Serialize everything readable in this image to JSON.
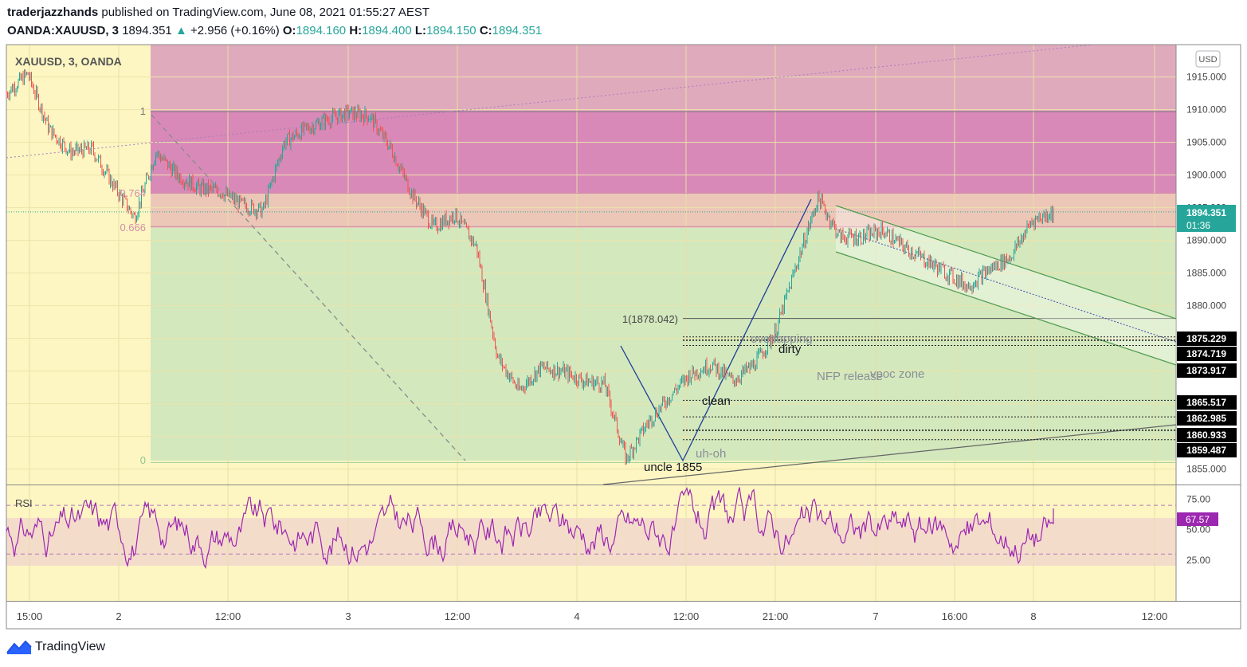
{
  "header": {
    "author": "traderjazzhands",
    "published": "published on TradingView.com, June 08, 2021 01:55:27 AEST",
    "symbol": "OANDA:XAUUSD, 3",
    "last": "1894.351",
    "change": "+2.956 (+0.16%)",
    "o_label": "O:",
    "o_value": "1894.160",
    "h_label": "H:",
    "h_value": "1894.400",
    "l_label": "L:",
    "l_value": "1894.150",
    "c_label": "C:",
    "c_value": "1894.351"
  },
  "legend": {
    "title": "XAUUSD, 3, OANDA"
  },
  "currency": "USD",
  "price_axis": [
    "1915.000",
    "1910.000",
    "1905.000",
    "1900.000",
    "1895.000",
    "1890.000",
    "1885.000",
    "1880.000",
    "1875.000",
    "1870.000",
    "1865.000",
    "1860.000",
    "1855.000"
  ],
  "current_price": {
    "value": "1894.351",
    "countdown": "01:36"
  },
  "level_badges": [
    "1875.229",
    "1874.719",
    "1873.917",
    "1865.517",
    "1862.985",
    "1860.933",
    "1859.487"
  ],
  "fib_labels": [
    "1",
    "0.764",
    "0.666",
    "0",
    "1(1878.042)"
  ],
  "annotations": [
    "overlapping",
    "dirty",
    "NFP release",
    "vpoc zone",
    "clean",
    "uh-oh",
    "uncle 1855"
  ],
  "rsi": {
    "title": "RSI",
    "value": "67.57",
    "axis": [
      "75.00",
      "50.00",
      "25.00"
    ]
  },
  "time_axis": [
    "15:00",
    "2",
    "12:00",
    "3",
    "12:00",
    "4",
    "12:00",
    "21:00",
    "7",
    "16:00",
    "8",
    "12:00"
  ],
  "footer": {
    "brand": "TradingView"
  },
  "colors": {
    "chart_bg": "#fdf6c2",
    "sell_zone": "#d889b7",
    "upper_zone": "#e0aabd",
    "fib_band": "#ecc7b7",
    "green_zone": "#d3e8bd",
    "candle_up": "#26a69a",
    "candle_down": "#ef5350",
    "rsi_line": "#9c27b0",
    "badge_black": "#000000",
    "badge_price": "#26a69a"
  },
  "chart_data": {
    "type": "candlestick",
    "title": "XAUUSD, 3, OANDA",
    "ylabel": "USD",
    "ylim": [
      1853,
      1920
    ],
    "x": [
      "15:00",
      "2",
      "12:00",
      "3",
      "12:00",
      "4",
      "12:00",
      "21:00",
      "7",
      "16:00",
      "8",
      "12:00"
    ],
    "price_path": [
      1912.5,
      1915.5,
      1907.0,
      1903.5,
      1904.0,
      1898.5,
      1893.5,
      1903.5,
      1900.0,
      1898.0,
      1897.5,
      1895.5,
      1894.5,
      1905.0,
      1907.0,
      1908.5,
      1909.5,
      1909.0,
      1904.0,
      1897.0,
      1892.0,
      1894.0,
      1889.0,
      1872.0,
      1867.0,
      1870.5,
      1870.0,
      1868.5,
      1868.0,
      1856.5,
      1862.0,
      1866.0,
      1869.5,
      1871.0,
      1868.5,
      1871.0,
      1876.0,
      1886.5,
      1896.5,
      1890.5,
      1890.5,
      1891.5,
      1889.0,
      1887.0,
      1885.0,
      1883.0,
      1885.5,
      1887.5,
      1893.0,
      1894.35
    ],
    "horizontal_levels": [
      1875.229,
      1874.719,
      1873.917,
      1865.517,
      1862.985,
      1860.933,
      1859.487
    ],
    "fib_retracement": {
      "levels": [
        1,
        0.764,
        0.666,
        0
      ],
      "prices": [
        1909.7,
        1897.2,
        1892.1,
        1856.0
      ]
    },
    "fib_extension": {
      "label": "1(1878.042)",
      "price": 1878.042
    },
    "rsi": {
      "last": 67.57,
      "upper_band": 70,
      "lower_band": 30,
      "ylim": [
        0,
        100
      ]
    }
  }
}
